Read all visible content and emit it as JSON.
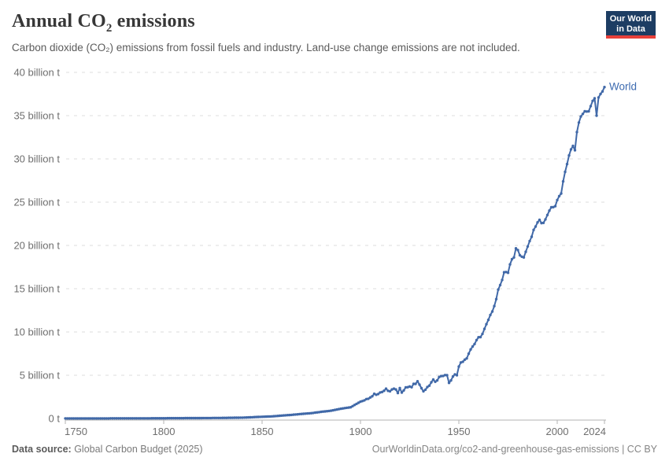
{
  "header": {
    "title_prefix": "Annual CO",
    "title_sub": "2",
    "title_suffix": " emissions",
    "subtitle": "Carbon dioxide (CO₂) emissions from fossil fuels and industry. Land-use change emissions are not included.",
    "logo_line1": "Our World",
    "logo_line2": "in Data"
  },
  "footer": {
    "source_label": "Data source:",
    "source_value": " Global Carbon Budget (2025)",
    "link_text": "OurWorldinData.org/co2-and-greenhouse-gas-emissions | CC BY"
  },
  "colors": {
    "line": "#4169a8",
    "end_label": "#3d6bb0",
    "grid": "#dcdcdc",
    "axis": "#b3b3b3",
    "tick_text": "#6e6e6e",
    "logo_navy": "#1d3d63",
    "logo_red": "#e8403a"
  },
  "chart_data": {
    "type": "line",
    "title": "Annual CO₂ emissions",
    "xlabel": "",
    "ylabel": "",
    "unit": "billion tonnes (t) of CO₂ per year",
    "xlim": [
      1750,
      2024
    ],
    "ylim": [
      0,
      40
    ],
    "grid": "horizontal-dashed",
    "legend_position": "end-of-line-label",
    "xticks": [
      1750,
      1800,
      1850,
      1900,
      1950,
      2000,
      2024
    ],
    "yticks": [
      {
        "value": 0,
        "label": "0 t"
      },
      {
        "value": 5,
        "label": "5 billion t"
      },
      {
        "value": 10,
        "label": "10 billion t"
      },
      {
        "value": 15,
        "label": "15 billion t"
      },
      {
        "value": 20,
        "label": "20 billion t"
      },
      {
        "value": 25,
        "label": "25 billion t"
      },
      {
        "value": 30,
        "label": "30 billion t"
      },
      {
        "value": 35,
        "label": "35 billion t"
      },
      {
        "value": 40,
        "label": "40 billion t"
      }
    ],
    "series": [
      {
        "name": "World",
        "points": [
          [
            1750,
            0.01
          ],
          [
            1760,
            0.011
          ],
          [
            1770,
            0.013
          ],
          [
            1780,
            0.016
          ],
          [
            1790,
            0.019
          ],
          [
            1800,
            0.03
          ],
          [
            1810,
            0.04
          ],
          [
            1820,
            0.05
          ],
          [
            1830,
            0.07
          ],
          [
            1840,
            0.1
          ],
          [
            1850,
            0.2
          ],
          [
            1855,
            0.25
          ],
          [
            1860,
            0.34
          ],
          [
            1865,
            0.42
          ],
          [
            1870,
            0.53
          ],
          [
            1875,
            0.62
          ],
          [
            1880,
            0.77
          ],
          [
            1885,
            0.9
          ],
          [
            1890,
            1.13
          ],
          [
            1895,
            1.3
          ],
          [
            1900,
            1.95
          ],
          [
            1901,
            2.02
          ],
          [
            1902,
            2.1
          ],
          [
            1903,
            2.25
          ],
          [
            1904,
            2.28
          ],
          [
            1905,
            2.44
          ],
          [
            1906,
            2.57
          ],
          [
            1907,
            2.85
          ],
          [
            1908,
            2.75
          ],
          [
            1909,
            2.83
          ],
          [
            1910,
            3.01
          ],
          [
            1911,
            3.06
          ],
          [
            1912,
            3.21
          ],
          [
            1913,
            3.45
          ],
          [
            1914,
            3.2
          ],
          [
            1915,
            3.15
          ],
          [
            1916,
            3.35
          ],
          [
            1917,
            3.45
          ],
          [
            1918,
            3.35
          ],
          [
            1919,
            2.95
          ],
          [
            1920,
            3.52
          ],
          [
            1921,
            3.0
          ],
          [
            1922,
            3.25
          ],
          [
            1923,
            3.6
          ],
          [
            1924,
            3.62
          ],
          [
            1925,
            3.7
          ],
          [
            1926,
            3.62
          ],
          [
            1927,
            4.0
          ],
          [
            1928,
            4.0
          ],
          [
            1929,
            4.3
          ],
          [
            1930,
            3.92
          ],
          [
            1931,
            3.5
          ],
          [
            1932,
            3.15
          ],
          [
            1933,
            3.33
          ],
          [
            1934,
            3.64
          ],
          [
            1935,
            3.8
          ],
          [
            1936,
            4.18
          ],
          [
            1937,
            4.5
          ],
          [
            1938,
            4.25
          ],
          [
            1939,
            4.4
          ],
          [
            1940,
            4.8
          ],
          [
            1941,
            4.9
          ],
          [
            1942,
            4.92
          ],
          [
            1943,
            5.02
          ],
          [
            1944,
            5.0
          ],
          [
            1945,
            4.12
          ],
          [
            1946,
            4.4
          ],
          [
            1947,
            4.85
          ],
          [
            1948,
            5.1
          ],
          [
            1949,
            5.0
          ],
          [
            1950,
            6.0
          ],
          [
            1951,
            6.47
          ],
          [
            1952,
            6.55
          ],
          [
            1953,
            6.8
          ],
          [
            1954,
            6.95
          ],
          [
            1955,
            7.49
          ],
          [
            1956,
            7.98
          ],
          [
            1957,
            8.32
          ],
          [
            1958,
            8.61
          ],
          [
            1959,
            9.06
          ],
          [
            1960,
            9.39
          ],
          [
            1961,
            9.41
          ],
          [
            1962,
            9.78
          ],
          [
            1963,
            10.35
          ],
          [
            1964,
            10.9
          ],
          [
            1965,
            11.4
          ],
          [
            1966,
            11.96
          ],
          [
            1967,
            12.36
          ],
          [
            1968,
            12.99
          ],
          [
            1969,
            13.79
          ],
          [
            1970,
            14.9
          ],
          [
            1971,
            15.42
          ],
          [
            1972,
            16.01
          ],
          [
            1973,
            16.9
          ],
          [
            1974,
            16.93
          ],
          [
            1975,
            16.84
          ],
          [
            1976,
            17.81
          ],
          [
            1977,
            18.41
          ],
          [
            1978,
            18.61
          ],
          [
            1979,
            19.66
          ],
          [
            1980,
            19.46
          ],
          [
            1981,
            18.86
          ],
          [
            1982,
            18.7
          ],
          [
            1983,
            18.62
          ],
          [
            1984,
            19.26
          ],
          [
            1985,
            19.88
          ],
          [
            1986,
            20.51
          ],
          [
            1987,
            21.0
          ],
          [
            1988,
            21.8
          ],
          [
            1989,
            22.18
          ],
          [
            1990,
            22.66
          ],
          [
            1991,
            22.96
          ],
          [
            1992,
            22.58
          ],
          [
            1993,
            22.61
          ],
          [
            1994,
            23.01
          ],
          [
            1995,
            23.52
          ],
          [
            1996,
            24.03
          ],
          [
            1997,
            24.41
          ],
          [
            1998,
            24.43
          ],
          [
            1999,
            24.54
          ],
          [
            2000,
            25.25
          ],
          [
            2001,
            25.7
          ],
          [
            2002,
            26.0
          ],
          [
            2003,
            27.4
          ],
          [
            2004,
            28.5
          ],
          [
            2005,
            29.4
          ],
          [
            2006,
            30.4
          ],
          [
            2007,
            31.1
          ],
          [
            2008,
            31.5
          ],
          [
            2009,
            31.0
          ],
          [
            2010,
            33.1
          ],
          [
            2011,
            34.2
          ],
          [
            2012,
            34.9
          ],
          [
            2013,
            35.2
          ],
          [
            2014,
            35.5
          ],
          [
            2015,
            35.47
          ],
          [
            2016,
            35.5
          ],
          [
            2017,
            36.1
          ],
          [
            2018,
            36.7
          ],
          [
            2019,
            37.0
          ],
          [
            2020,
            35.0
          ],
          [
            2021,
            37.1
          ],
          [
            2022,
            37.5
          ],
          [
            2023,
            37.8
          ],
          [
            2024,
            38.3
          ]
        ]
      }
    ],
    "end_label": "World"
  }
}
